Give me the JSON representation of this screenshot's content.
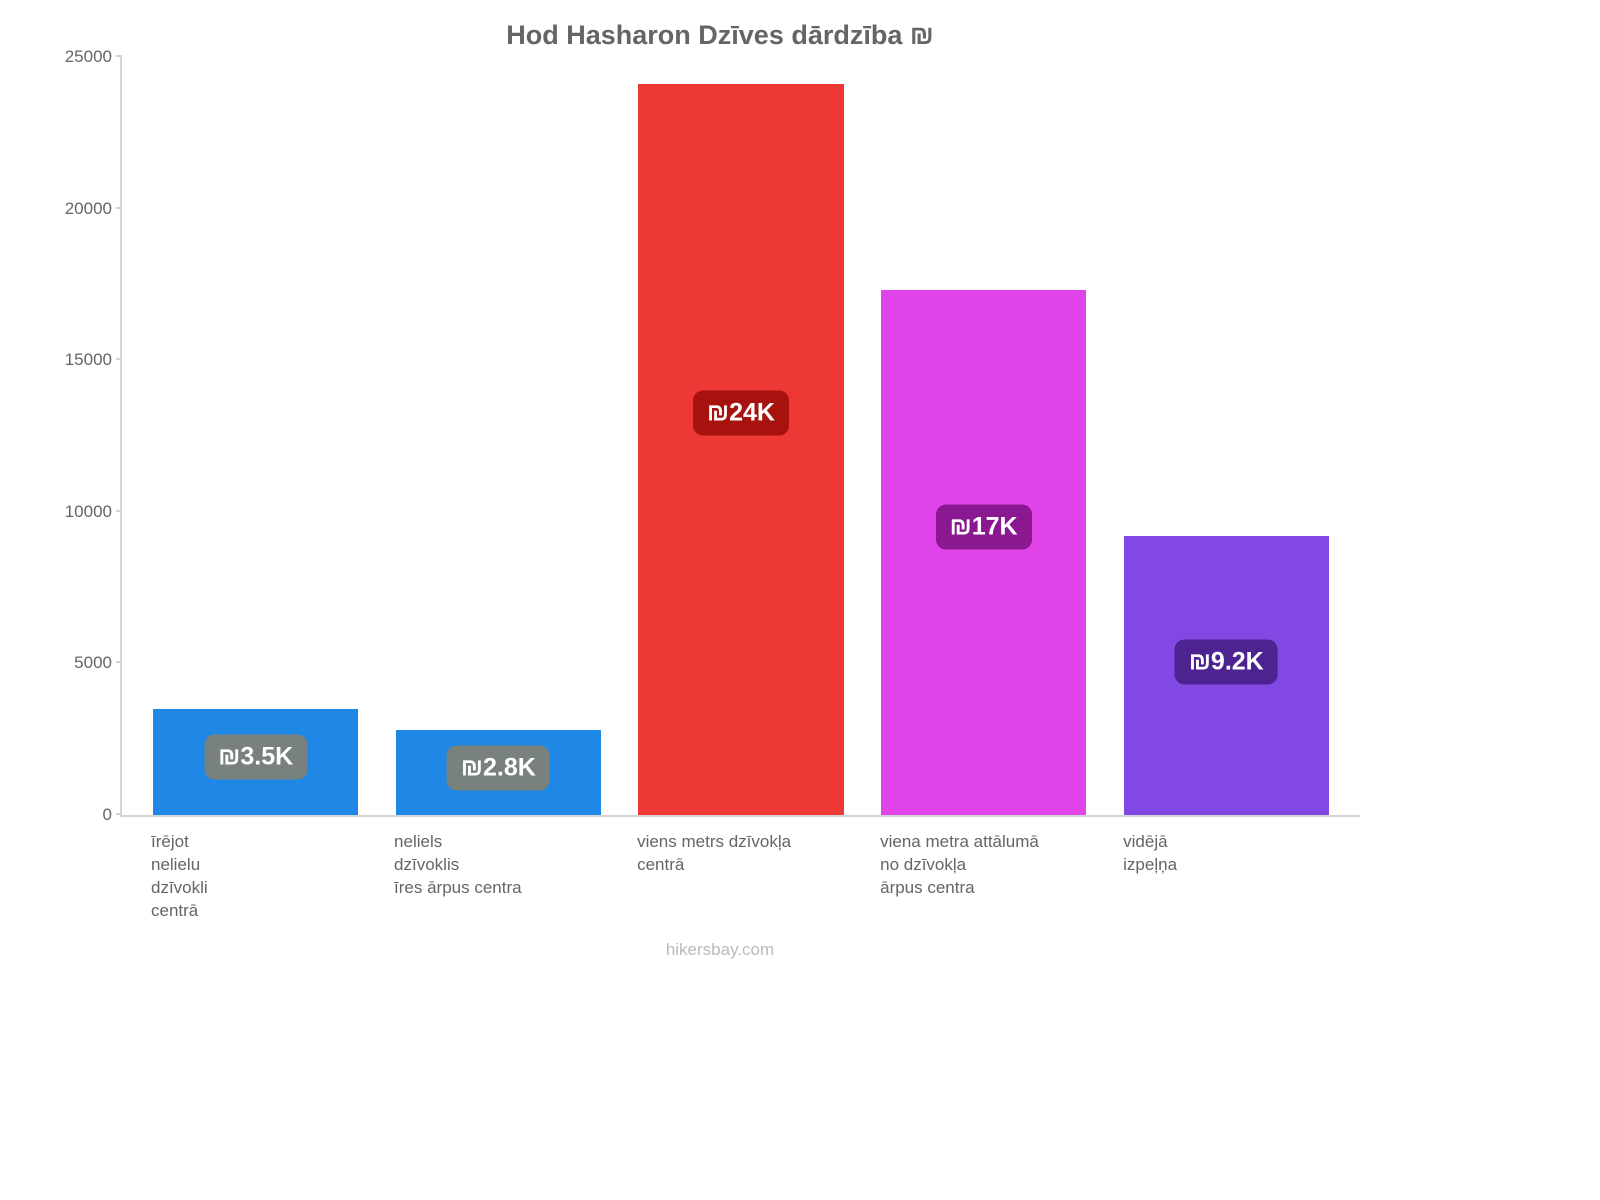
{
  "chart": {
    "type": "bar",
    "title": "Hod Hasharon Dzīves dārdzība ₪",
    "title_fontsize": 27,
    "title_color": "#636566",
    "background_color": "#ffffff",
    "axis_color": "#d2d4d6",
    "tick_label_color": "#636566",
    "tick_label_fontsize": 17,
    "ylim": [
      0,
      25000
    ],
    "ytick_step": 5000,
    "yticks": [
      {
        "value": 0,
        "label": "0"
      },
      {
        "value": 5000,
        "label": "5000"
      },
      {
        "value": 10000,
        "label": "10000"
      },
      {
        "value": 15000,
        "label": "15000"
      },
      {
        "value": 20000,
        "label": "20000"
      },
      {
        "value": 25000,
        "label": "25000"
      }
    ],
    "bar_width_pct": 16.6,
    "bar_gap_pct": 3.0,
    "bars": [
      {
        "value": 3500,
        "color": "#1f87e5",
        "value_label": "₪3.5K",
        "label_bg": "#79817f",
        "xlabel": [
          "īrējot",
          "nelielu",
          "dzīvokli",
          "centrā"
        ]
      },
      {
        "value": 2800,
        "color": "#1f87e5",
        "value_label": "₪2.8K",
        "label_bg": "#79817f",
        "xlabel": [
          "neliels",
          "dzīvoklis",
          "īres ārpus centra"
        ]
      },
      {
        "value": 24100,
        "color": "#ee3835",
        "value_label": "₪24K",
        "label_bg": "#a7110e",
        "xlabel": [
          "viens metrs dzīvokļa",
          "centrā"
        ]
      },
      {
        "value": 17300,
        "color": "#e043e8",
        "value_label": "₪17K",
        "label_bg": "#8a1891",
        "xlabel": [
          "viena metra attālumā",
          "no dzīvokļa",
          "ārpus centra"
        ]
      },
      {
        "value": 9200,
        "color": "#8248e4",
        "value_label": "₪9.2K",
        "label_bg": "#4c2390",
        "xlabel": [
          "vidējā",
          "izpeļņa"
        ]
      }
    ],
    "value_label_fontsize": 25,
    "value_label_color": "#ffffff",
    "xlabel_fontsize": 17,
    "xlabel_color": "#636566",
    "footer": "hikersbay.com",
    "footer_color": "#b7bbbf",
    "footer_fontsize": 17
  }
}
